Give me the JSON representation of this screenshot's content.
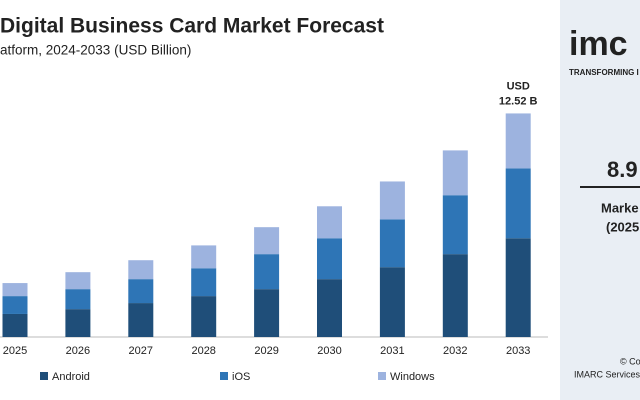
{
  "chart_data": {
    "type": "stacked-bar",
    "title": "Digital Business Card Market Forecast",
    "subtitle": "atform, 2024-2033 (USD Billion)",
    "categories": [
      "2025",
      "2026",
      "2027",
      "2028",
      "2029",
      "2030",
      "2031",
      "2032",
      "2033"
    ],
    "series": [
      {
        "name": "Android",
        "color": "#1f4e79",
        "values": [
          1.29,
          1.56,
          1.9,
          2.29,
          2.68,
          3.24,
          3.91,
          4.64,
          5.53
        ]
      },
      {
        "name": "iOS",
        "color": "#2e75b6",
        "values": [
          1.0,
          1.12,
          1.34,
          1.56,
          1.96,
          2.29,
          2.68,
          3.3,
          3.91
        ]
      },
      {
        "name": "Windows",
        "color": "#9db3df",
        "values": [
          0.73,
          0.95,
          1.06,
          1.28,
          1.51,
          1.79,
          2.12,
          2.51,
          3.08
        ]
      }
    ],
    "annotation": [
      "USD",
      "12.52 B"
    ],
    "ylim": [
      0,
      14
    ],
    "legend": "bottom"
  },
  "side_panel": {
    "logo": "imc",
    "tagline": "TRANSFORMING I",
    "stat": "8.9",
    "stat_label": [
      "Marke",
      "(2025"
    ],
    "footer": [
      "© Co",
      "IMARC Services P"
    ]
  }
}
